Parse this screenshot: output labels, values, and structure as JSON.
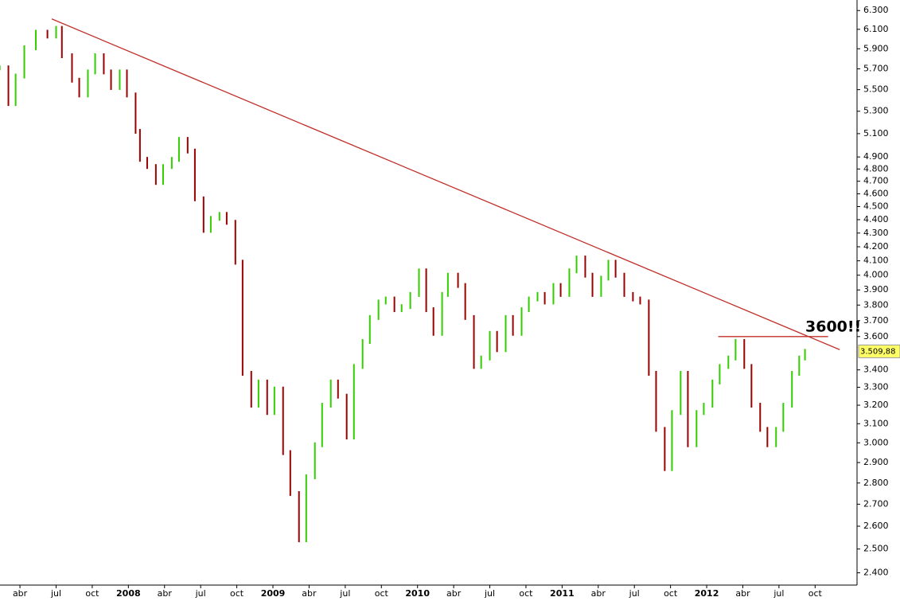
{
  "chart_data": {
    "type": "line",
    "log_scale": true,
    "grid": false,
    "up_color": "#33cc00",
    "down_color": "#990000",
    "trend_color": "#c0302a",
    "xlim": [
      2007.112,
      2013.04
    ],
    "ylim": [
      2350,
      6415
    ],
    "xticks": [
      {
        "value": 2007.25,
        "label": "abr"
      },
      {
        "value": 2007.5,
        "label": "jul"
      },
      {
        "value": 2007.75,
        "label": "oct"
      },
      {
        "value": 2008.0,
        "label": "2008"
      },
      {
        "value": 2008.25,
        "label": "abr"
      },
      {
        "value": 2008.5,
        "label": "jul"
      },
      {
        "value": 2008.75,
        "label": "oct"
      },
      {
        "value": 2009.0,
        "label": "2009"
      },
      {
        "value": 2009.25,
        "label": "abr"
      },
      {
        "value": 2009.5,
        "label": "jul"
      },
      {
        "value": 2009.75,
        "label": "oct"
      },
      {
        "value": 2010.0,
        "label": "2010"
      },
      {
        "value": 2010.25,
        "label": "abr"
      },
      {
        "value": 2010.5,
        "label": "jul"
      },
      {
        "value": 2010.75,
        "label": "oct"
      },
      {
        "value": 2011.0,
        "label": "2011"
      },
      {
        "value": 2011.25,
        "label": "abr"
      },
      {
        "value": 2011.5,
        "label": "jul"
      },
      {
        "value": 2011.75,
        "label": "oct"
      },
      {
        "value": 2012.0,
        "label": "2012"
      },
      {
        "value": 2012.25,
        "label": "abr"
      },
      {
        "value": 2012.5,
        "label": "jul"
      },
      {
        "value": 2012.75,
        "label": "oct"
      }
    ],
    "yticks": [
      {
        "value": 6300,
        "label": "6.300"
      },
      {
        "value": 6100,
        "label": "6.100"
      },
      {
        "value": 5900,
        "label": "5.900"
      },
      {
        "value": 5700,
        "label": "5.700"
      },
      {
        "value": 5500,
        "label": "5.500"
      },
      {
        "value": 5300,
        "label": "5.300"
      },
      {
        "value": 5100,
        "label": "5.100"
      },
      {
        "value": 4900,
        "label": "4.900"
      },
      {
        "value": 4800,
        "label": "4.800"
      },
      {
        "value": 4700,
        "label": "4.700"
      },
      {
        "value": 4600,
        "label": "4.600"
      },
      {
        "value": 4500,
        "label": "4.500"
      },
      {
        "value": 4400,
        "label": "4.400"
      },
      {
        "value": 4300,
        "label": "4.300"
      },
      {
        "value": 4200,
        "label": "4.200"
      },
      {
        "value": 4100,
        "label": "4.100"
      },
      {
        "value": 4000,
        "label": "4.000"
      },
      {
        "value": 3900,
        "label": "3.900"
      },
      {
        "value": 3800,
        "label": "3.800"
      },
      {
        "value": 3700,
        "label": "3.700"
      },
      {
        "value": 3600,
        "label": "3.600"
      },
      {
        "value": 3400,
        "label": "3.400"
      },
      {
        "value": 3300,
        "label": "3.300"
      },
      {
        "value": 3200,
        "label": "3.200"
      },
      {
        "value": 3100,
        "label": "3.100"
      },
      {
        "value": 3000,
        "label": "3.000"
      },
      {
        "value": 2900,
        "label": "2.900"
      },
      {
        "value": 2800,
        "label": "2.800"
      },
      {
        "value": 2700,
        "label": "2.700"
      },
      {
        "value": 2600,
        "label": "2.600"
      },
      {
        "value": 2500,
        "label": "2.500"
      },
      {
        "value": 2400,
        "label": "2.400"
      }
    ],
    "x": [
      2007.11,
      2007.17,
      2007.22,
      2007.28,
      2007.36,
      2007.44,
      2007.5,
      2007.54,
      2007.61,
      2007.66,
      2007.72,
      2007.77,
      2007.83,
      2007.88,
      2007.94,
      2007.99,
      2008.05,
      2008.08,
      2008.13,
      2008.19,
      2008.24,
      2008.3,
      2008.35,
      2008.41,
      2008.46,
      2008.52,
      2008.57,
      2008.63,
      2008.68,
      2008.74,
      2008.79,
      2008.85,
      2008.9,
      2008.96,
      2009.01,
      2009.07,
      2009.12,
      2009.18,
      2009.23,
      2009.29,
      2009.34,
      2009.4,
      2009.45,
      2009.51,
      2009.56,
      2009.62,
      2009.67,
      2009.73,
      2009.78,
      2009.84,
      2009.89,
      2009.95,
      2010.01,
      2010.06,
      2010.11,
      2010.17,
      2010.21,
      2010.28,
      2010.33,
      2010.39,
      2010.44,
      2010.5,
      2010.55,
      2010.61,
      2010.66,
      2010.72,
      2010.77,
      2010.83,
      2010.88,
      2010.94,
      2010.99,
      2011.05,
      2011.1,
      2011.16,
      2011.21,
      2011.27,
      2011.32,
      2011.37,
      2011.43,
      2011.49,
      2011.54,
      2011.6,
      2011.65,
      2011.71,
      2011.76,
      2011.82,
      2011.87,
      2011.93,
      2011.98,
      2012.04,
      2012.09,
      2012.15,
      2012.2,
      2012.26,
      2012.31,
      2012.37,
      2012.42,
      2012.48,
      2012.53,
      2012.59,
      2012.64,
      2012.68
    ],
    "values": [
      5710,
      5370,
      5630,
      5910,
      6070,
      6030,
      6110,
      5830,
      5590,
      5450,
      5670,
      5830,
      5670,
      5520,
      5670,
      5450,
      5120,
      4880,
      4820,
      4690,
      4820,
      4880,
      5050,
      4950,
      4560,
      4320,
      4410,
      4440,
      4380,
      4090,
      3380,
      3200,
      3330,
      3160,
      3290,
      2950,
      2750,
      2540,
      2830,
      2990,
      3200,
      3330,
      3250,
      3030,
      3420,
      3570,
      3720,
      3820,
      3840,
      3770,
      3790,
      3870,
      4030,
      3770,
      3620,
      3870,
      4000,
      3930,
      3720,
      3420,
      3470,
      3620,
      3520,
      3720,
      3620,
      3770,
      3840,
      3870,
      3820,
      3930,
      3870,
      4030,
      4120,
      4000,
      3870,
      3980,
      4090,
      4000,
      3870,
      3840,
      3820,
      3380,
      3070,
      2870,
      3160,
      3380,
      2990,
      3160,
      3200,
      3330,
      3420,
      3470,
      3570,
      3420,
      3200,
      3070,
      2990,
      3070,
      3200,
      3380,
      3470,
      3509.88
    ],
    "last_price": {
      "value": 3509.88,
      "label": "3.509,88"
    },
    "lines": [
      {
        "x": [
          2007.47,
          2012.92
        ],
        "y": [
          6210,
          3520
        ]
      },
      {
        "x": [
          2012.08,
          2012.84
        ],
        "y": [
          3600,
          3600
        ]
      }
    ],
    "annotation": "3600!!"
  }
}
